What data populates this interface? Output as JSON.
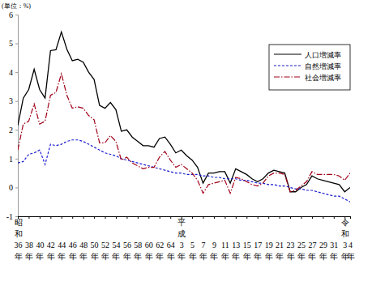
{
  "chart_data": {
    "type": "line",
    "y_label": "(単位：%)",
    "categories": [
      "昭和36年",
      null,
      "38年",
      null,
      "40年",
      null,
      "42年",
      null,
      "44年",
      null,
      "46年",
      null,
      "48年",
      null,
      "50年",
      null,
      "52年",
      null,
      "54年",
      null,
      "56年",
      null,
      "58年",
      null,
      "60年",
      null,
      "62年",
      null,
      "64年",
      null,
      "平成3年",
      null,
      "5年",
      null,
      "7年",
      null,
      "9年",
      null,
      "11年",
      null,
      "13年",
      null,
      "15年",
      null,
      "17年",
      null,
      "19年",
      null,
      "21年",
      null,
      "23年",
      null,
      "25年",
      null,
      "27年",
      null,
      "29年",
      null,
      "31年",
      null,
      "令和3年",
      "4年"
    ],
    "series": [
      {
        "name": "人口増減率",
        "color": "#000000",
        "line_style": "solid",
        "values": [
          2.15,
          3.1,
          3.4,
          4.1,
          3.4,
          3.1,
          4.75,
          4.78,
          5.4,
          4.8,
          4.4,
          4.45,
          4.35,
          4.0,
          3.75,
          2.85,
          2.75,
          2.95,
          2.7,
          1.95,
          2.0,
          1.75,
          1.6,
          1.45,
          1.45,
          1.4,
          1.7,
          1.75,
          1.5,
          1.2,
          1.3,
          1.1,
          0.95,
          0.7,
          0.15,
          0.5,
          0.5,
          0.55,
          0.55,
          0.15,
          0.65,
          0.55,
          0.45,
          0.3,
          0.2,
          0.3,
          0.5,
          0.6,
          0.55,
          0.5,
          -0.15,
          -0.15,
          0.0,
          0.1,
          0.4,
          0.3,
          0.25,
          0.2,
          0.15,
          0.1,
          -0.15,
          0.0
        ]
      },
      {
        "name": "自然増減率",
        "color": "#1a1ad0",
        "line_style": "dashed",
        "values": [
          0.85,
          0.9,
          1.15,
          1.2,
          1.3,
          0.8,
          1.5,
          1.45,
          1.5,
          1.6,
          1.65,
          1.65,
          1.6,
          1.5,
          1.4,
          1.3,
          1.2,
          1.15,
          1.1,
          1.0,
          0.95,
          0.9,
          0.85,
          0.8,
          0.75,
          0.7,
          0.65,
          0.6,
          0.55,
          0.5,
          0.5,
          0.45,
          0.45,
          0.45,
          0.4,
          0.4,
          0.35,
          0.35,
          0.3,
          0.3,
          0.3,
          0.25,
          0.25,
          0.2,
          0.15,
          0.15,
          0.1,
          0.1,
          0.05,
          0.05,
          0.0,
          -0.05,
          -0.05,
          -0.1,
          -0.1,
          -0.15,
          -0.2,
          -0.25,
          -0.3,
          -0.3,
          -0.4,
          -0.5
        ]
      },
      {
        "name": "社会増減率",
        "color": "#a00018",
        "line_style": "dashdot",
        "values": [
          1.3,
          2.2,
          2.3,
          2.9,
          2.2,
          2.3,
          3.2,
          3.3,
          3.95,
          3.2,
          2.75,
          2.8,
          2.75,
          2.5,
          2.35,
          1.55,
          1.55,
          1.8,
          1.6,
          0.95,
          1.05,
          0.85,
          0.75,
          0.65,
          0.7,
          0.7,
          1.05,
          1.25,
          0.95,
          0.7,
          0.8,
          0.65,
          0.5,
          0.25,
          -0.2,
          0.1,
          0.15,
          0.2,
          0.25,
          -0.2,
          0.35,
          0.3,
          0.2,
          0.1,
          0.05,
          0.15,
          0.4,
          0.5,
          0.5,
          0.45,
          -0.15,
          -0.1,
          0.05,
          0.2,
          0.55,
          0.45,
          0.45,
          0.45,
          0.45,
          0.4,
          0.25,
          0.5
        ]
      }
    ],
    "ylim": [
      -1,
      6
    ],
    "yticks": [
      -1,
      0,
      1,
      2,
      3,
      4,
      5,
      6
    ],
    "grid": false,
    "legend": "upper right"
  }
}
